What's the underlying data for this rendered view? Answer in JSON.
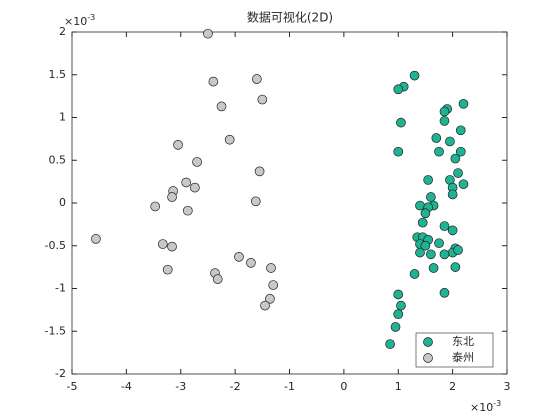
{
  "chart_data": {
    "type": "scatter",
    "title": "数据可视化(2D)",
    "x_exponent": {
      "base": "×10",
      "exp": "-3"
    },
    "y_exponent": {
      "base": "×10",
      "exp": "-3"
    },
    "xlim": [
      -5,
      3
    ],
    "ylim": [
      -2,
      2
    ],
    "xticks": [
      -5,
      -4,
      -3,
      -2,
      -1,
      0,
      1,
      2,
      3
    ],
    "yticks": [
      -2,
      -1.5,
      -1,
      -0.5,
      0,
      0.5,
      1,
      1.5,
      2
    ],
    "legend": "southeast",
    "series": [
      {
        "name": "东北",
        "color": "#1fb394",
        "x": [
          1.3,
          1.1,
          1.0,
          2.2,
          1.9,
          1.85,
          1.85,
          1.05,
          2.15,
          1.7,
          1.95,
          1.0,
          1.75,
          2.05,
          2.15,
          2.1,
          1.55,
          1.95,
          2.2,
          2.0,
          2.0,
          1.6,
          1.4,
          1.65,
          1.55,
          1.5,
          1.45,
          1.35,
          1.45,
          1.85,
          2.0,
          1.55,
          1.4,
          1.75,
          2.05,
          1.5,
          2.0,
          1.4,
          1.6,
          1.85,
          1.65,
          1.3,
          2.05,
          1.0,
          1.85,
          1.05,
          1.0,
          0.95,
          0.85,
          2.1
        ],
        "y": [
          1.49,
          1.36,
          1.33,
          1.16,
          1.1,
          1.07,
          0.96,
          0.94,
          0.85,
          0.76,
          0.72,
          0.6,
          0.6,
          0.52,
          0.6,
          0.35,
          0.27,
          0.27,
          0.22,
          0.18,
          0.1,
          0.07,
          -0.03,
          -0.03,
          -0.05,
          -0.12,
          -0.23,
          -0.4,
          -0.4,
          -0.27,
          -0.32,
          -0.43,
          -0.48,
          -0.47,
          -0.53,
          -0.5,
          -0.58,
          -0.58,
          -0.6,
          -0.6,
          -0.76,
          -0.83,
          -0.75,
          -1.07,
          -1.05,
          -1.2,
          -1.3,
          -1.45,
          -1.65,
          -0.55
        ]
      },
      {
        "name": "泰州",
        "color": "#c8c8c8",
        "x": [
          -2.5,
          -2.4,
          -1.6,
          -1.5,
          -2.25,
          -2.1,
          -3.05,
          -2.7,
          -1.55,
          -2.9,
          -3.14,
          -2.74,
          -3.16,
          -3.47,
          -2.87,
          -1.62,
          -4.56,
          -3.33,
          -3.16,
          -1.93,
          -1.71,
          -1.34,
          -3.24,
          -2.37,
          -2.32,
          -1.3,
          -1.36,
          -1.45
        ],
        "y": [
          1.98,
          1.42,
          1.45,
          1.21,
          1.13,
          0.74,
          0.68,
          0.48,
          0.37,
          0.24,
          0.14,
          0.18,
          0.07,
          -0.04,
          -0.09,
          0.02,
          -0.42,
          -0.48,
          -0.51,
          -0.63,
          -0.7,
          -0.76,
          -0.78,
          -0.82,
          -0.89,
          -0.96,
          -1.12,
          -1.2
        ]
      }
    ]
  }
}
